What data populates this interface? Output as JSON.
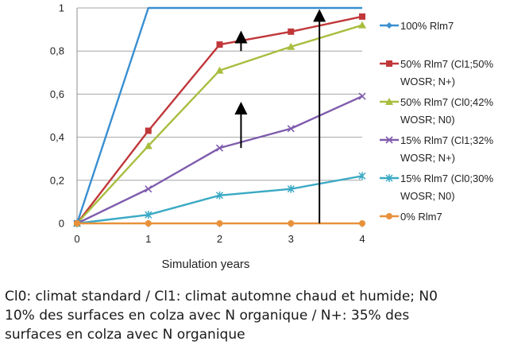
{
  "chart_data": {
    "type": "line",
    "xlabel": "Simulation years",
    "ylabel": "",
    "x": [
      0,
      1,
      2,
      3,
      4
    ],
    "xlim": [
      0,
      4
    ],
    "ylim": [
      0,
      1
    ],
    "x_ticks": [
      "0",
      "1",
      "2",
      "3",
      "4"
    ],
    "y_ticks": [
      "0",
      "0,2",
      "0,4",
      "0,6",
      "0,8",
      "1"
    ],
    "grid": "horizontal",
    "legend_position": "right",
    "series": [
      {
        "name": "100% Rlm7",
        "color": "#3a8fd0",
        "marker": "diamond",
        "values": [
          0,
          1.0,
          1.0,
          1.0,
          1.0
        ]
      },
      {
        "name": "50% Rlm7 (Cl1;50% WOSR; N+)",
        "color": "#c0373a",
        "marker": "square",
        "values": [
          0,
          0.43,
          0.83,
          0.89,
          0.96
        ]
      },
      {
        "name": "50% Rlm7 (Cl0;42% WOSR; N0)",
        "color": "#a9bd3f",
        "marker": "triangle",
        "values": [
          0,
          0.36,
          0.71,
          0.82,
          0.92
        ]
      },
      {
        "name": "15% Rlm7 (Cl1;32% WOSR; N+)",
        "color": "#7f5cad",
        "marker": "x",
        "values": [
          0,
          0.16,
          0.35,
          0.44,
          0.59
        ]
      },
      {
        "name": "15% Rlm7 (Cl0;30% WOSR; N0)",
        "color": "#3aa9c4",
        "marker": "star",
        "values": [
          0,
          0.04,
          0.13,
          0.16,
          0.22
        ]
      },
      {
        "name": "0% Rlm7",
        "color": "#e8913a",
        "marker": "circle",
        "values": [
          0,
          0,
          0,
          0,
          0
        ]
      }
    ],
    "legend": [
      {
        "lines": [
          "100% Rlm7"
        ]
      },
      {
        "lines": [
          "50% Rlm7 (Cl1;50%",
          "WOSR; N+)"
        ]
      },
      {
        "lines": [
          "50% Rlm7 (Cl0;42%",
          "WOSR; N0)"
        ]
      },
      {
        "lines": [
          "15% Rlm7 (Cl1;32%",
          "WOSR; N+)"
        ]
      },
      {
        "lines": [
          "15% Rlm7 (Cl0;30%",
          "WOSR; N0)"
        ]
      },
      {
        "lines": [
          "0% Rlm7"
        ]
      }
    ],
    "annotations": [
      {
        "kind": "arrow",
        "x": 2.3,
        "y_from": 0.8,
        "y_to": 0.88
      },
      {
        "kind": "arrow",
        "x": 2.3,
        "y_from": 0.35,
        "y_to": 0.55
      },
      {
        "kind": "arrow",
        "x": 3.4,
        "y_from": 0.0,
        "y_to": 0.98
      }
    ]
  },
  "caption": {
    "line1": "Cl0: climat standard / Cl1: climat automne chaud et humide; N0",
    "line2": "10% des surfaces en colza avec N organique / N+: 35% des",
    "line3": "surfaces en colza avec N organique"
  }
}
